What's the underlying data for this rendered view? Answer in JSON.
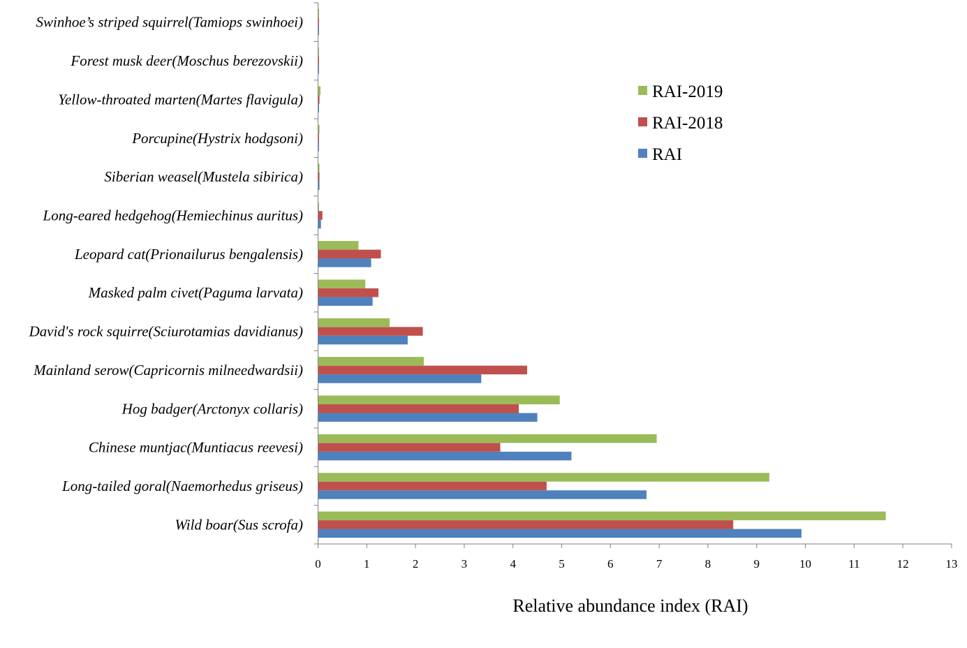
{
  "chart_data": {
    "type": "bar",
    "orientation": "horizontal",
    "title": "",
    "xlabel": "Relative abundance  index (RAI)",
    "ylabel": "",
    "xlim": [
      0,
      13
    ],
    "xticks": [
      0,
      1,
      2,
      3,
      4,
      5,
      6,
      7,
      8,
      9,
      10,
      11,
      12,
      13
    ],
    "grid": false,
    "legend_position": "right",
    "categories": [
      "Wild boar(Sus scrofa)",
      "Long-tailed goral(Naemorhedus griseus)",
      "Chinese muntjac(Muntiacus reevesi)",
      "Hog badger(Arctonyx collaris)",
      "Mainland serow(Capricornis milneedwardsii)",
      "David's rock squirre(Sciurotamias davidianus)",
      "Masked palm civet(Paguma larvata)",
      "Leopard cat(Prionailurus bengalensis)",
      "Long-eared hedgehog(Hemiechinus auritus)",
      "Siberian weasel(Mustela sibirica)",
      "Porcupine(Hystrix hodgsoni)",
      "Yellow-throated marten(Martes flavigula)",
      "Forest musk deer(Moschus berezovskii)",
      "Swinhoe’s striped squirrel(Tamiops swinhoei)"
    ],
    "series": [
      {
        "name": "RAI",
        "color": "#4F81BD",
        "values": [
          9.92,
          6.74,
          5.2,
          4.5,
          3.35,
          1.84,
          1.12,
          1.09,
          0.06,
          0.03,
          0.02,
          0.02,
          0.02,
          0.02
        ]
      },
      {
        "name": "RAI-2018",
        "color": "#C0504D",
        "values": [
          8.52,
          4.69,
          3.74,
          4.12,
          4.29,
          2.15,
          1.24,
          1.29,
          0.09,
          0.03,
          0.02,
          0.03,
          0.02,
          0.02
        ]
      },
      {
        "name": "RAI-2019",
        "color": "#9BBB59",
        "values": [
          11.65,
          9.26,
          6.95,
          4.96,
          2.17,
          1.47,
          0.97,
          0.83,
          0.02,
          0.03,
          0.03,
          0.05,
          0.02,
          0.02
        ]
      }
    ],
    "legend": [
      "RAI-2019",
      "RAI-2018",
      "RAI"
    ]
  }
}
